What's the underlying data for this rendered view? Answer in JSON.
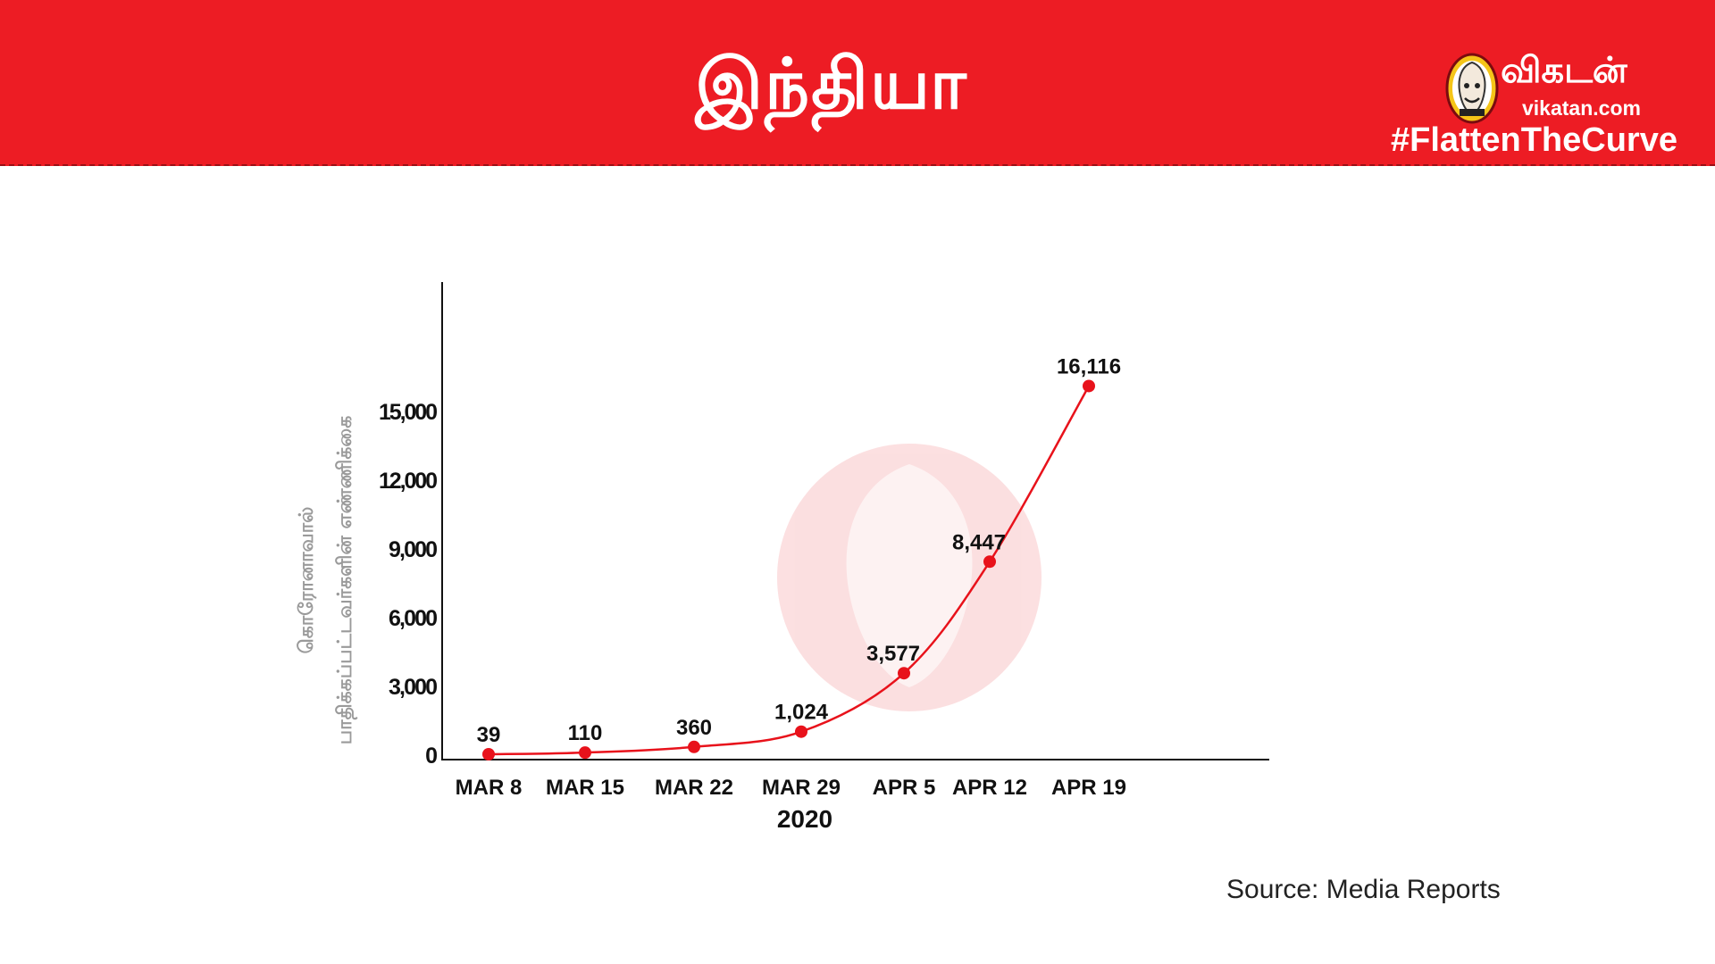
{
  "header": {
    "title": "இந்தியா",
    "brand_name": "விகடன்",
    "brand_url": "vikatan.com",
    "hashtag": "#FlattenTheCurve",
    "banner_color": "#ed1c24"
  },
  "source": "Source: Media Reports",
  "chart_data": {
    "type": "line",
    "ylabel_line1": "கொரோனாவால்",
    "ylabel_line2": "பாதிக்கப்பட்டவர்களின் எண்ணிக்கை",
    "year_label": "2020",
    "x": [
      "MAR 8",
      "MAR 15",
      "MAR 22",
      "MAR 29",
      "APR 5",
      "APR 12",
      "APR 19"
    ],
    "y": [
      39,
      110,
      360,
      1024,
      3577,
      8447,
      16116
    ],
    "data_labels": [
      "39",
      "110",
      "360",
      "1,024",
      "3,577",
      "8,447",
      "16,116"
    ],
    "yticks": [
      0,
      3000,
      6000,
      9000,
      12000,
      15000
    ],
    "ytick_labels": [
      "0",
      "3,000",
      "6,000",
      "9,000",
      "12,000",
      "15,000"
    ],
    "ylim": [
      0,
      20000
    ],
    "line_color": "#e8121b",
    "grid": false,
    "legend": false
  }
}
